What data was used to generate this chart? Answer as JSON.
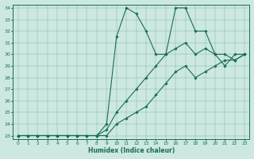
{
  "xlabel": "Humidex (Indice chaleur)",
  "background_color": "#cce8e0",
  "line_color": "#1a6b5a",
  "xlim": [
    -0.5,
    23.5
  ],
  "ylim": [
    22.7,
    34.3
  ],
  "yticks": [
    23,
    24,
    25,
    26,
    27,
    28,
    29,
    30,
    31,
    32,
    33,
    34
  ],
  "xticks": [
    0,
    1,
    2,
    3,
    4,
    5,
    6,
    7,
    8,
    9,
    10,
    11,
    12,
    13,
    14,
    15,
    16,
    17,
    18,
    19,
    20,
    21,
    22,
    23
  ],
  "series": [
    {
      "x": [
        0,
        1,
        2,
        3,
        4,
        5,
        6,
        7,
        8,
        9,
        10,
        11,
        12,
        13,
        14,
        15,
        16,
        17,
        18,
        19,
        20,
        21,
        22,
        23
      ],
      "y": [
        23,
        23,
        23,
        23,
        23,
        23,
        23,
        23,
        23,
        23,
        24,
        24.5,
        25,
        25.5,
        26.5,
        27.5,
        28.5,
        29,
        28,
        28.5,
        29,
        29.5,
        29.5,
        30
      ]
    },
    {
      "x": [
        0,
        1,
        2,
        3,
        4,
        5,
        6,
        7,
        8,
        9,
        10,
        11,
        12,
        13,
        14,
        15,
        16,
        17,
        18,
        19,
        20,
        21,
        22,
        23
      ],
      "y": [
        23,
        23,
        23,
        23,
        23,
        23,
        23,
        23,
        23,
        23.5,
        25,
        26,
        27,
        28,
        29,
        30,
        30.5,
        31,
        30,
        30.5,
        30,
        29,
        30,
        30
      ]
    },
    {
      "x": [
        0,
        1,
        2,
        3,
        4,
        5,
        6,
        7,
        8,
        9,
        10,
        11,
        12,
        13,
        14,
        15,
        16,
        17,
        18,
        19,
        20,
        21,
        22,
        23
      ],
      "y": [
        23,
        23,
        23,
        23,
        23,
        23,
        23,
        23,
        23,
        24,
        31.5,
        34,
        33.5,
        32,
        30,
        30,
        34,
        34,
        32,
        32,
        30,
        30,
        29.5,
        30
      ]
    }
  ]
}
